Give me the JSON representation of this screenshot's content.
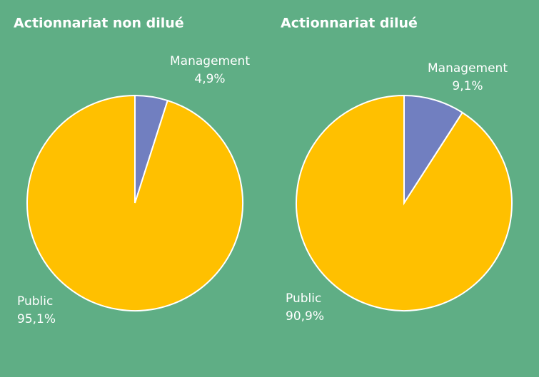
{
  "chart_data": [
    {
      "type": "pie",
      "title": "Actionnariat non dilué",
      "categories": [
        "Management",
        "Public"
      ],
      "values": [
        4.9,
        95.1
      ],
      "value_labels": [
        "4,9%",
        "95,1%"
      ],
      "colors": [
        "#717fc0",
        "#ffc000"
      ]
    },
    {
      "type": "pie",
      "title": "Actionnariat dilué",
      "categories": [
        "Management",
        "Public"
      ],
      "values": [
        9.1,
        90.9
      ],
      "value_labels": [
        "9,1%",
        "90,9%"
      ],
      "colors": [
        "#717fc0",
        "#ffc000"
      ]
    }
  ]
}
